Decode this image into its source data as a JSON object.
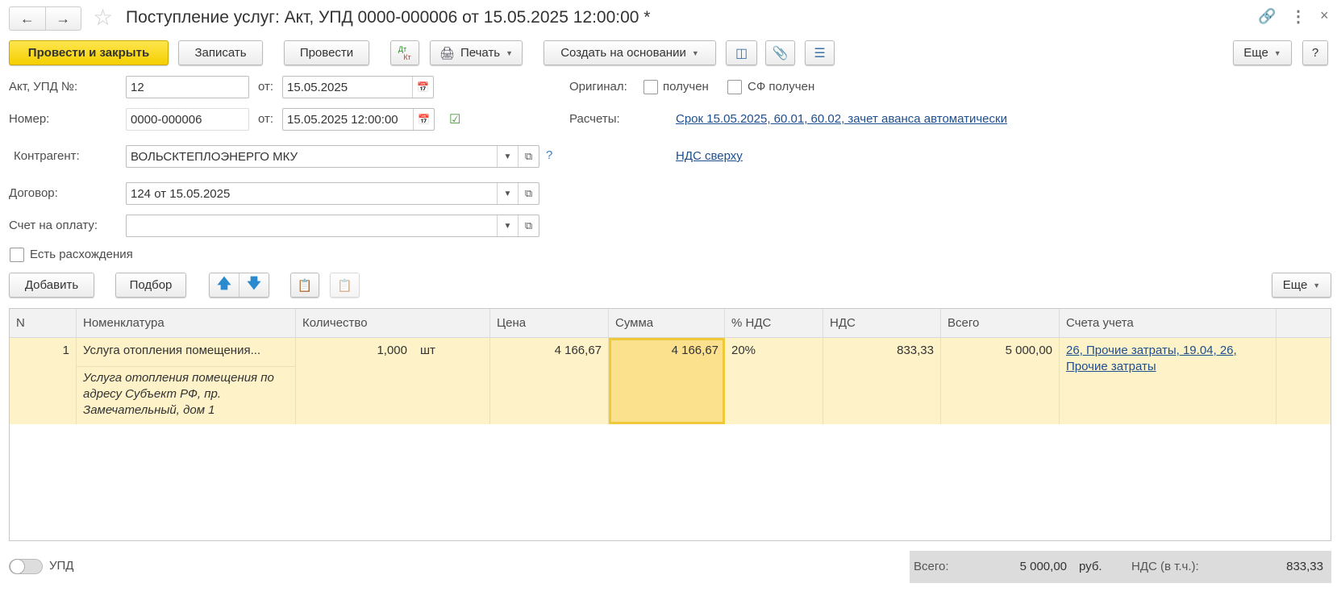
{
  "window": {
    "title": "Поступление услуг: Акт, УПД 0000-000006 от 15.05.2025 12:00:00 *",
    "back_icon": "arrow-left-icon",
    "forward_icon": "arrow-right-icon",
    "favorite_icon": "star-icon",
    "link_icon": "link-icon",
    "menu_icon": "more-vertical-icon",
    "close_icon": "close-icon"
  },
  "toolbar": {
    "post_close": "Провести и закрыть",
    "save": "Записать",
    "post": "Провести",
    "dt": "Дт",
    "kt": "Кт",
    "print": "Печать",
    "create_based": "Создать на основании",
    "more": "Еще",
    "help": "?"
  },
  "form": {
    "act_label": "Акт, УПД №:",
    "act_value": "12",
    "from_label": "от:",
    "act_date": "15.05.2025",
    "number_label": "Номер:",
    "number_value": "0000-000006",
    "number_date": "15.05.2025 12:00:00",
    "original_label": "Оригинал:",
    "received": "получен",
    "sf_received": "СФ получен",
    "calc_label": "Расчеты:",
    "calc_link": "Срок 15.05.2025, 60.01, 60.02, зачет аванса автоматически",
    "counterparty_label": "Контрагент:",
    "counterparty_value": "ВОЛЬСКТЕПЛОЭНЕРГО МКУ",
    "help": "?",
    "vat_link": "НДС сверху",
    "contract_label": "Договор:",
    "contract_value": "124 от 15.05.2025",
    "invoice_label": "Счет на оплату:",
    "invoice_value": "",
    "discrepancy_label": "Есть расхождения"
  },
  "table_toolbar": {
    "add": "Добавить",
    "pick": "Подбор",
    "more": "Еще"
  },
  "table": {
    "columns": [
      "N",
      "Номенклатура",
      "Количество",
      "Цена",
      "Сумма",
      "% НДС",
      "НДС",
      "Всего",
      "Счета учета"
    ],
    "rows": [
      {
        "n": "1",
        "item": "Услуга отопления помещения...",
        "description": "Услуга отопления помещения по адресу Субъект РФ, пр. Замечательный, дом 1",
        "qty": "1,000",
        "unit": "шт",
        "price": "4 166,67",
        "sum": "4 166,67",
        "vat_rate": "20%",
        "vat": "833,33",
        "total": "5 000,00",
        "accounts": "26, Прочие затраты, 19.04, 26, Прочие затраты"
      }
    ]
  },
  "footer": {
    "upd_label": "УПД",
    "upd_toggle_on": false,
    "total_label": "Всего:",
    "total_value": "5 000,00",
    "currency": "руб.",
    "vat_label": "НДС (в т.ч.):",
    "vat_value": "833,33"
  }
}
